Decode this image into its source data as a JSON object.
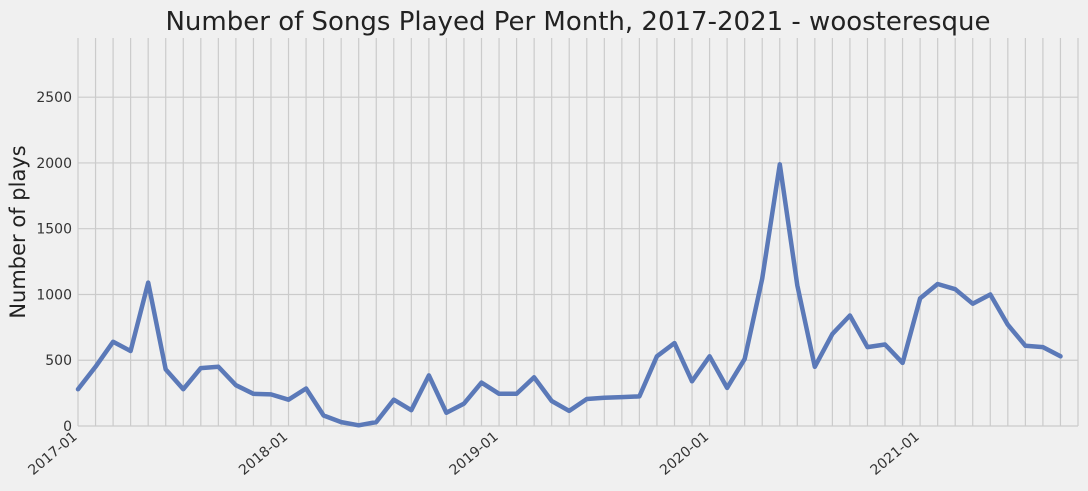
{
  "chart_data": {
    "type": "line",
    "title": "Number of Songs Played Per Month, 2017-2021 - woosteresque",
    "xlabel": "",
    "ylabel": "Number of plays",
    "ylim": [
      0,
      2950
    ],
    "xlim": [
      "2017-01",
      "2021-10"
    ],
    "grid": true,
    "y_ticks": [
      0,
      500,
      1000,
      1500,
      2000,
      2500
    ],
    "x_ticks": [
      "2017-01",
      "2018-01",
      "2019-01",
      "2020-01",
      "2021-01"
    ],
    "colors": {
      "line": "#5b79b8",
      "background": "#f0f0f0",
      "grid": "#cbcbcb"
    },
    "x": [
      "2017-01",
      "2017-02",
      "2017-03",
      "2017-04",
      "2017-05",
      "2017-06",
      "2017-07",
      "2017-08",
      "2017-09",
      "2017-10",
      "2017-11",
      "2017-12",
      "2018-01",
      "2018-02",
      "2018-03",
      "2018-04",
      "2018-05",
      "2018-06",
      "2018-07",
      "2018-08",
      "2018-09",
      "2018-10",
      "2018-11",
      "2018-12",
      "2019-01",
      "2019-02",
      "2019-03",
      "2019-04",
      "2019-05",
      "2019-06",
      "2019-07",
      "2019-08",
      "2019-09",
      "2019-10",
      "2019-11",
      "2019-12",
      "2020-01",
      "2020-02",
      "2020-03",
      "2020-04",
      "2020-05",
      "2020-06",
      "2020-07",
      "2020-08",
      "2020-09",
      "2020-10",
      "2020-11",
      "2020-12",
      "2021-01",
      "2021-02",
      "2021-03",
      "2021-04",
      "2021-05",
      "2021-06",
      "2021-07",
      "2021-08",
      "2021-09"
    ],
    "series": [
      {
        "values": [
          280,
          450,
          640,
          570,
          1090,
          430,
          280,
          440,
          450,
          310,
          245,
          240,
          200,
          285,
          80,
          30,
          5,
          30,
          200,
          120,
          385,
          100,
          170,
          330,
          245,
          245,
          370,
          190,
          115,
          205,
          215,
          220,
          225,
          530,
          630,
          340,
          530,
          290,
          510,
          1120,
          1990,
          1070,
          450,
          700,
          840,
          600,
          620,
          480,
          970,
          1080,
          1040,
          930,
          1000,
          770,
          610,
          600,
          530
        ]
      }
    ]
  }
}
